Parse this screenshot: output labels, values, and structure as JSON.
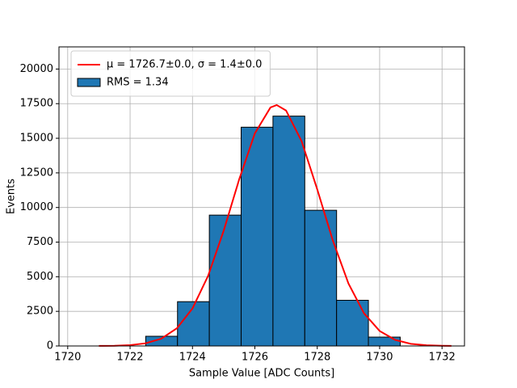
{
  "chart_data": {
    "type": "histogram",
    "xlabel": "Sample Value [ADC Counts]",
    "ylabel": "Events",
    "bins": [
      1722.5,
      1723.52,
      1724.54,
      1725.56,
      1726.58,
      1727.6,
      1728.62,
      1729.64,
      1730.66
    ],
    "series": [
      {
        "name": "RMS = 1.34",
        "color": "#1f77b4",
        "edgecolor": "#000000",
        "values": [
          700,
          3200,
          9450,
          15800,
          16600,
          9800,
          3300,
          640
        ]
      }
    ],
    "lines": [
      {
        "type": "line",
        "name": "μ = 1726.7±0.0, σ = 1.4±0.0",
        "color": "#ff0000",
        "x": [
          1721,
          1721.5,
          1722,
          1722.5,
          1723,
          1723.5,
          1724,
          1724.5,
          1725,
          1725.5,
          1726,
          1726.5,
          1726.7,
          1727,
          1727.5,
          1728,
          1728.5,
          1729,
          1729.5,
          1730,
          1730.5,
          1731,
          1731.5,
          1732,
          1732.3
        ],
        "values": [
          4.4,
          17.6,
          62,
          193,
          529,
          1277,
          2709,
          5062,
          8324,
          12050,
          15356,
          17224,
          17400,
          17005,
          14780,
          11306,
          7612,
          4514,
          2355,
          1082,
          437,
          156,
          49,
          13.4,
          5.8
        ]
      }
    ],
    "xlim": [
      1719.72,
      1732.72
    ],
    "ylim": [
      0,
      21600
    ],
    "xticks": [
      1720,
      1722,
      1724,
      1726,
      1728,
      1730,
      1732
    ],
    "yticks": [
      0,
      2500,
      5000,
      7500,
      10000,
      12500,
      15000,
      17500,
      20000
    ],
    "grid": true,
    "legend": "upper left"
  }
}
